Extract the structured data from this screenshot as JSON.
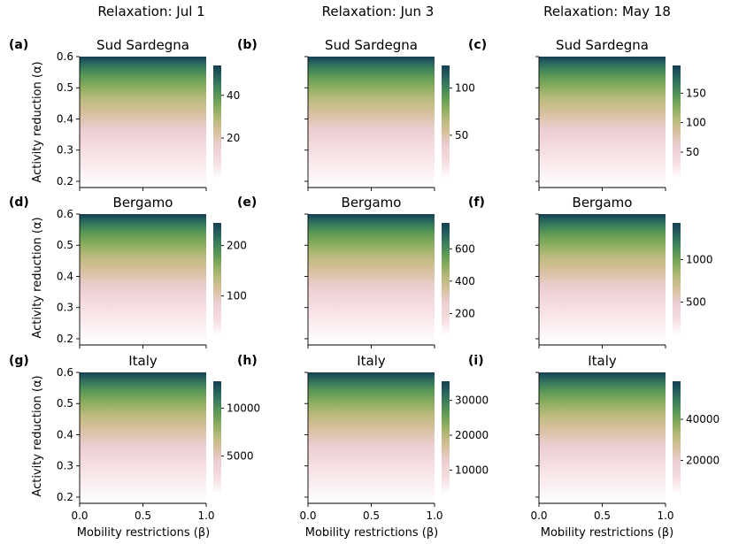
{
  "figure": {
    "column_titles": [
      "Relaxation: Jul 1",
      "Relaxation: Jun 3",
      "Relaxation: May 18"
    ],
    "row_titles": [
      "Sud Sardegna",
      "Bergamo",
      "Italy"
    ],
    "y_axis_label": "Activity reduction (α)",
    "x_axis_label": "Mobility restrictions (β)",
    "colormap": [
      "#ffffff",
      "#f5dde0",
      "#ebcdd0",
      "#d6bf9a",
      "#b9ba7c",
      "#8bad5e",
      "#5e9a55",
      "#3c7f5c",
      "#25605d",
      "#163f52"
    ],
    "x_ticks": [
      "0.0",
      "0.5",
      "1.0"
    ],
    "y_ticks": [
      "0.2",
      "0.3",
      "0.4",
      "0.5",
      "0.6"
    ]
  },
  "chart_data": [
    {
      "panel": "(a)",
      "type": "heatmap",
      "title": "Sud Sardegna",
      "column": "Relaxation: Jul 1",
      "xlim": [
        0,
        1
      ],
      "ylim": [
        0.18,
        0.6
      ],
      "colorbar_ticks": [
        "20",
        "40"
      ],
      "colorbar_tick_values": [
        20,
        40
      ],
      "colorbar_range": [
        1,
        54
      ]
    },
    {
      "panel": "(b)",
      "type": "heatmap",
      "title": "Sud Sardegna",
      "column": "Relaxation: Jun 3",
      "xlim": [
        0,
        1
      ],
      "ylim": [
        0.18,
        0.6
      ],
      "colorbar_ticks": [
        "50",
        "100"
      ],
      "colorbar_tick_values": [
        50,
        100
      ],
      "colorbar_range": [
        4,
        124
      ]
    },
    {
      "panel": "(c)",
      "type": "heatmap",
      "title": "Sud Sardegna",
      "column": "Relaxation: May 18",
      "xlim": [
        0,
        1
      ],
      "ylim": [
        0.18,
        0.6
      ],
      "colorbar_ticks": [
        "50",
        "100",
        "150"
      ],
      "colorbar_tick_values": [
        50,
        100,
        150
      ],
      "colorbar_range": [
        5,
        197
      ]
    },
    {
      "panel": "(d)",
      "type": "heatmap",
      "title": "Bergamo",
      "column": "Relaxation: Jul 1",
      "xlim": [
        0,
        1
      ],
      "ylim": [
        0.18,
        0.6
      ],
      "colorbar_ticks": [
        "100",
        "200"
      ],
      "colorbar_tick_values": [
        100,
        200
      ],
      "colorbar_range": [
        20,
        245
      ]
    },
    {
      "panel": "(e)",
      "type": "heatmap",
      "title": "Bergamo",
      "column": "Relaxation: Jun 3",
      "xlim": [
        0,
        1
      ],
      "ylim": [
        0.18,
        0.6
      ],
      "colorbar_ticks": [
        "200",
        "400",
        "600"
      ],
      "colorbar_tick_values": [
        200,
        400,
        600
      ],
      "colorbar_range": [
        60,
        760
      ]
    },
    {
      "panel": "(f)",
      "type": "heatmap",
      "title": "Bergamo",
      "column": "Relaxation: May 18",
      "xlim": [
        0,
        1
      ],
      "ylim": [
        0.18,
        0.6
      ],
      "colorbar_ticks": [
        "500",
        "1000"
      ],
      "colorbar_tick_values": [
        500,
        1000
      ],
      "colorbar_range": [
        100,
        1430
      ]
    },
    {
      "panel": "(g)",
      "type": "heatmap",
      "title": "Italy",
      "column": "Relaxation: Jul 1",
      "xlim": [
        0,
        1
      ],
      "ylim": [
        0.18,
        0.6
      ],
      "colorbar_ticks": [
        "5000",
        "10000"
      ],
      "colorbar_tick_values": [
        5000,
        10000
      ],
      "colorbar_range": [
        1000,
        12800
      ]
    },
    {
      "panel": "(h)",
      "type": "heatmap",
      "title": "Italy",
      "column": "Relaxation: Jun 3",
      "xlim": [
        0,
        1
      ],
      "ylim": [
        0.18,
        0.6
      ],
      "colorbar_ticks": [
        "10000",
        "20000",
        "30000"
      ],
      "colorbar_tick_values": [
        10000,
        20000,
        30000
      ],
      "colorbar_range": [
        3000,
        35500
      ]
    },
    {
      "panel": "(i)",
      "type": "heatmap",
      "title": "Italy",
      "column": "Relaxation: May 18",
      "xlim": [
        0,
        1
      ],
      "ylim": [
        0.18,
        0.6
      ],
      "colorbar_ticks": [
        "20000",
        "40000"
      ],
      "colorbar_tick_values": [
        20000,
        40000
      ],
      "colorbar_range": [
        3500,
        58500
      ]
    }
  ]
}
